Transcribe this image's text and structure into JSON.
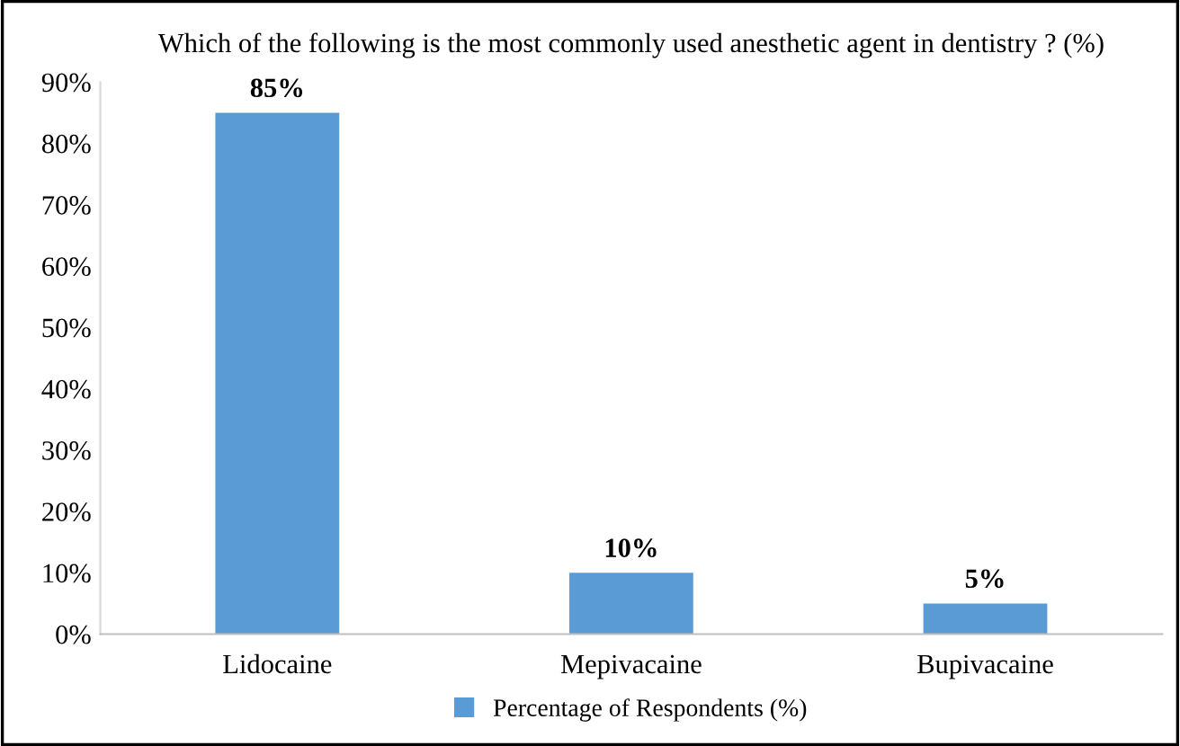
{
  "chart_data": {
    "type": "bar",
    "title": "Which of the following is the most commonly used anesthetic agent in dentistry ? (%)",
    "categories": [
      "Lidocaine",
      "Mepivacaine",
      "Bupivacaine"
    ],
    "series": [
      {
        "name": "Percentage of Respondents (%)",
        "color": "#5b9bd5",
        "values": [
          85,
          10,
          5
        ],
        "value_labels": [
          "85%",
          "10%",
          "5%"
        ]
      }
    ],
    "ylim": [
      0,
      90
    ],
    "yticks": [
      {
        "value": 0,
        "label": "0%"
      },
      {
        "value": 10,
        "label": "10%"
      },
      {
        "value": 20,
        "label": "20%"
      },
      {
        "value": 30,
        "label": "30%"
      },
      {
        "value": 40,
        "label": "40%"
      },
      {
        "value": 50,
        "label": "50%"
      },
      {
        "value": 60,
        "label": "60%"
      },
      {
        "value": 70,
        "label": "70%"
      },
      {
        "value": 80,
        "label": "80%"
      },
      {
        "value": 90,
        "label": "90%"
      }
    ],
    "grid": false,
    "legend": "bottom"
  }
}
